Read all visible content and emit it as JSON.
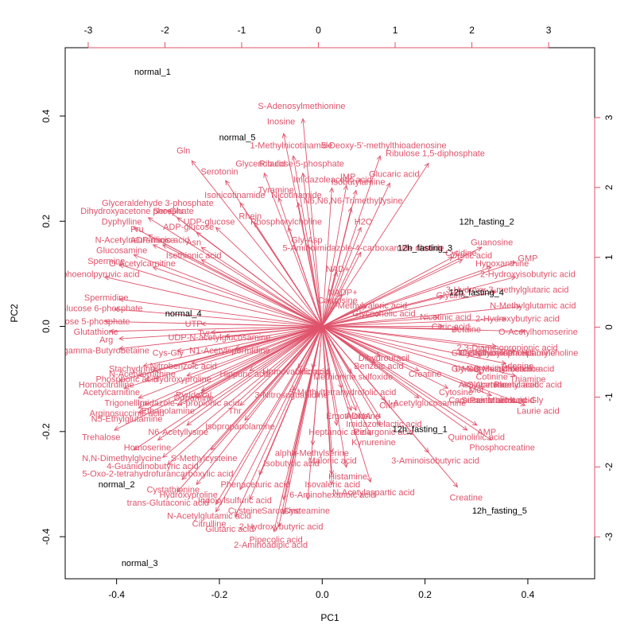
{
  "chart_data": {
    "type": "scatter",
    "subtype": "biplot",
    "title": "",
    "xlabel": "PC1",
    "ylabel": "PC2",
    "xlim": [
      -0.5,
      0.53
    ],
    "ylim": [
      -0.48,
      0.53
    ],
    "xticks": [
      -0.4,
      -0.2,
      0.0,
      0.2,
      0.4
    ],
    "yticks": [
      -0.4,
      -0.2,
      0.0,
      0.2,
      0.4
    ],
    "top_axis": {
      "lim": [
        -3.3,
        3.6
      ],
      "ticks": [
        -3,
        -2,
        -1,
        0,
        1,
        2,
        3
      ]
    },
    "right_axis": {
      "lim": [
        -3.6,
        4.0
      ],
      "ticks": [
        -3,
        -2,
        -1,
        0,
        1,
        2,
        3
      ]
    },
    "grid": false,
    "legend": "none",
    "colors": {
      "samples": "#000000",
      "variables": "#DF536B",
      "axes": "#000000"
    },
    "samples": [
      {
        "name": "normal_1",
        "x": -0.33,
        "y": 0.485
      },
      {
        "name": "normal_5",
        "x": -0.165,
        "y": 0.36
      },
      {
        "name": "normal_4",
        "x": -0.27,
        "y": 0.025
      },
      {
        "name": "normal_2",
        "x": -0.4,
        "y": -0.3
      },
      {
        "name": "normal_3",
        "x": -0.355,
        "y": -0.45
      },
      {
        "name": "12h_fasting_2",
        "x": 0.32,
        "y": 0.2
      },
      {
        "name": "12h_fasting_3",
        "x": 0.2,
        "y": 0.15
      },
      {
        "name": "12h_fasting_4",
        "x": 0.3,
        "y": 0.065
      },
      {
        "name": "12h_fasting_1",
        "x": 0.19,
        "y": -0.195
      },
      {
        "name": "12h_fasting_5",
        "x": 0.345,
        "y": -0.35
      }
    ],
    "variables": [
      {
        "name": "S-Adenosylmethionine",
        "x": -0.04,
        "y": 0.42
      },
      {
        "name": "Inosine",
        "x": -0.08,
        "y": 0.39
      },
      {
        "name": "1-Methylnicotinamide",
        "x": -0.06,
        "y": 0.345
      },
      {
        "name": "5-Deoxy-5'-methylthioadenosine",
        "x": 0.12,
        "y": 0.345
      },
      {
        "name": "Ribulose 1,5-diphosphate",
        "x": 0.22,
        "y": 0.33
      },
      {
        "name": "Gln",
        "x": -0.27,
        "y": 0.335
      },
      {
        "name": "Glyceric acid",
        "x": -0.12,
        "y": 0.31
      },
      {
        "name": "Ribulose 5-phosphate",
        "x": -0.04,
        "y": 0.31
      },
      {
        "name": "Serotonin",
        "x": -0.2,
        "y": 0.295
      },
      {
        "name": "Imidazoleacetic acid",
        "x": 0.02,
        "y": 0.28
      },
      {
        "name": "IMP",
        "x": 0.05,
        "y": 0.285
      },
      {
        "name": "Glucaric acid",
        "x": 0.14,
        "y": 0.29
      },
      {
        "name": "Isobutylamine",
        "x": 0.07,
        "y": 0.275
      },
      {
        "name": "Tyramine",
        "x": -0.09,
        "y": 0.26
      },
      {
        "name": "Isonicotinamide",
        "x": -0.17,
        "y": 0.25
      },
      {
        "name": "Nicotinamide",
        "x": -0.05,
        "y": 0.25
      },
      {
        "name": "N6,N6,N6-Trimethyllysine",
        "x": 0.06,
        "y": 0.24
      },
      {
        "name": "Glyceraldehyde 3-phosphate",
        "x": -0.32,
        "y": 0.235
      },
      {
        "name": "Dihydroxyacetone phosphate",
        "x": -0.36,
        "y": 0.22
      },
      {
        "name": "Ser-Glu",
        "x": -0.3,
        "y": 0.22
      },
      {
        "name": "Dyphylline",
        "x": -0.39,
        "y": 0.2
      },
      {
        "name": "UDP-glucose",
        "x": -0.22,
        "y": 0.2
      },
      {
        "name": "Phosphorylcholine",
        "x": -0.07,
        "y": 0.2
      },
      {
        "name": "H2O",
        "x": 0.08,
        "y": 0.2
      },
      {
        "name": "Fru",
        "x": -0.36,
        "y": 0.185
      },
      {
        "name": "ADP-glucose",
        "x": -0.26,
        "y": 0.19
      },
      {
        "name": "Rhein",
        "x": -0.14,
        "y": 0.21
      },
      {
        "name": "N-Acetylneuraminic acid",
        "x": -0.35,
        "y": 0.165
      },
      {
        "name": "ADP-ribose",
        "x": -0.33,
        "y": 0.165
      },
      {
        "name": "Asn",
        "x": -0.25,
        "y": 0.16
      },
      {
        "name": "Gly-Asp",
        "x": -0.03,
        "y": 0.165
      },
      {
        "name": "Glucosamine",
        "x": -0.39,
        "y": 0.145
      },
      {
        "name": "5-Aminoimidazole-4-carboxamide ribotide",
        "x": 0.08,
        "y": 0.15
      },
      {
        "name": "Spermine",
        "x": -0.42,
        "y": 0.125
      },
      {
        "name": "Isethionic acid",
        "x": -0.25,
        "y": 0.135
      },
      {
        "name": "O-Acetylcarnitine",
        "x": -0.35,
        "y": 0.12
      },
      {
        "name": "Guanosine",
        "x": 0.33,
        "y": 0.16
      },
      {
        "name": "Cytidine",
        "x": 0.27,
        "y": 0.14
      },
      {
        "name": "Orotic acid",
        "x": 0.29,
        "y": 0.135
      },
      {
        "name": "Hypoxanthine",
        "x": 0.35,
        "y": 0.12
      },
      {
        "name": "2-Hydroxyisobutyric acid",
        "x": 0.4,
        "y": 0.1
      },
      {
        "name": "NAD+",
        "x": 0.03,
        "y": 0.11
      },
      {
        "name": "Phosphoenolpyruvic acid",
        "x": -0.45,
        "y": 0.1
      },
      {
        "name": "GMP",
        "x": 0.4,
        "y": 0.13
      },
      {
        "name": "NADP+",
        "x": 0.04,
        "y": 0.065
      },
      {
        "name": "Carnosine",
        "x": 0.03,
        "y": 0.05
      },
      {
        "name": "3-Hydroxy-3-methylglutaric acid",
        "x": 0.36,
        "y": 0.07
      },
      {
        "name": "Glycine",
        "x": 0.25,
        "y": 0.06
      },
      {
        "name": "N-Methylglutamic acid",
        "x": 0.41,
        "y": 0.04
      },
      {
        "name": "2-Methylvaleric acid",
        "x": 0.09,
        "y": 0.04
      },
      {
        "name": "Glycocholic acid",
        "x": 0.12,
        "y": 0.025
      },
      {
        "name": "Spermidine",
        "x": -0.42,
        "y": 0.055
      },
      {
        "name": "Glucose 6-phosphate",
        "x": -0.43,
        "y": 0.035
      },
      {
        "name": "Nicotinic acid",
        "x": 0.24,
        "y": 0.018
      },
      {
        "name": "2-Hydroxybutyric acid",
        "x": 0.38,
        "y": 0.015
      },
      {
        "name": "Ribose 5-phosphate",
        "x": -0.45,
        "y": 0.01
      },
      {
        "name": "UTP",
        "x": -0.25,
        "y": 0.005
      },
      {
        "name": "Glutathione",
        "x": -0.44,
        "y": -0.01
      },
      {
        "name": "O-Acetylhomoserine",
        "x": 0.42,
        "y": -0.01
      },
      {
        "name": "Arg",
        "x": -0.42,
        "y": -0.025
      },
      {
        "name": "Tyr",
        "x": -0.23,
        "y": -0.012
      },
      {
        "name": "UDP-N-acetylglucosamine",
        "x": -0.2,
        "y": -0.02
      },
      {
        "name": "Citric acid",
        "x": 0.25,
        "y": 0.0
      },
      {
        "name": "Betaine",
        "x": 0.28,
        "y": -0.005
      },
      {
        "name": "2,3-Diaminopropionic acid",
        "x": 0.36,
        "y": -0.04
      },
      {
        "name": "gamma-Butyrobetaine",
        "x": -0.42,
        "y": -0.045
      },
      {
        "name": "Cys-Gly",
        "x": -0.3,
        "y": -0.05
      },
      {
        "name": "N1-Acetylspermidine",
        "x": -0.18,
        "y": -0.045
      },
      {
        "name": "Glycerophosphorylcholine",
        "x": 0.4,
        "y": -0.05
      },
      {
        "name": "Stachydrine",
        "x": -0.37,
        "y": -0.08
      },
      {
        "name": "Nitrobenzoic acid",
        "x": -0.27,
        "y": -0.075
      },
      {
        "name": "Hippuric acid",
        "x": -0.15,
        "y": -0.09
      },
      {
        "name": "Adenine",
        "x": 0.38,
        "y": -0.075
      },
      {
        "name": "Benzoic acid",
        "x": 0.11,
        "y": -0.075
      },
      {
        "name": "Dihydrouracil",
        "x": 0.12,
        "y": -0.06
      },
      {
        "name": "Methionine sulfoxide",
        "x": 0.06,
        "y": -0.095
      },
      {
        "name": "Creatine",
        "x": 0.2,
        "y": -0.09
      },
      {
        "name": "Homocitrulline",
        "x": -0.42,
        "y": -0.11
      },
      {
        "name": "Phosphoric acid",
        "x": -0.38,
        "y": -0.1
      },
      {
        "name": "N-Acetylornithine",
        "x": -0.35,
        "y": -0.09
      },
      {
        "name": "Acetylcarnitine",
        "x": -0.41,
        "y": -0.125
      },
      {
        "name": "4-Hydroxyproline",
        "x": -0.28,
        "y": -0.1
      },
      {
        "name": "Homovanillic acid",
        "x": -0.05,
        "y": -0.085
      },
      {
        "name": "Uric acid",
        "x": -0.02,
        "y": -0.085
      },
      {
        "name": "Cotinine",
        "x": 0.33,
        "y": -0.095
      },
      {
        "name": "Thiamine",
        "x": 0.4,
        "y": -0.1
      },
      {
        "name": "Trigonelline",
        "x": -0.38,
        "y": -0.145
      },
      {
        "name": "Arginosuccinic acid",
        "x": -0.38,
        "y": -0.165
      },
      {
        "name": "Pyridoxal",
        "x": -0.25,
        "y": -0.13
      },
      {
        "name": "Dopamine",
        "x": -0.25,
        "y": -0.135
      },
      {
        "name": "Imidazole-4-propionic acid",
        "x": -0.26,
        "y": -0.145
      },
      {
        "name": "5-Methyltetrahydrofolic acid",
        "x": 0.04,
        "y": -0.125
      },
      {
        "name": "3-Nitrosoguanidine",
        "x": -0.06,
        "y": -0.13
      },
      {
        "name": "N5-Ethylglutamine",
        "x": -0.38,
        "y": -0.175
      },
      {
        "name": "Ethanolamine",
        "x": -0.3,
        "y": -0.16
      },
      {
        "name": "Thr",
        "x": -0.17,
        "y": -0.16
      },
      {
        "name": "Cytosine",
        "x": 0.26,
        "y": -0.125
      },
      {
        "name": "Met",
        "x": 0.3,
        "y": -0.12
      },
      {
        "name": "Pantothenic acid",
        "x": 0.35,
        "y": -0.14
      },
      {
        "name": "N-Acetylglucosamine",
        "x": 0.2,
        "y": -0.145
      },
      {
        "name": "CMP",
        "x": 0.13,
        "y": -0.15
      },
      {
        "name": "Ergothioneine",
        "x": 0.06,
        "y": -0.17
      },
      {
        "name": "ADMA",
        "x": 0.07,
        "y": -0.17
      },
      {
        "name": "Isopropanolamine",
        "x": -0.16,
        "y": -0.19
      },
      {
        "name": "N6-Acetyllysine",
        "x": -0.28,
        "y": -0.2
      },
      {
        "name": "Heptanoic acid",
        "x": 0.03,
        "y": -0.2
      },
      {
        "name": "Pelargonic acid",
        "x": 0.12,
        "y": -0.2
      },
      {
        "name": "Imidazolelactic acid",
        "x": 0.12,
        "y": -0.185
      },
      {
        "name": "Trehalose",
        "x": -0.43,
        "y": -0.21
      },
      {
        "name": "Homoserine",
        "x": -0.34,
        "y": -0.23
      },
      {
        "name": "Kynurenine",
        "x": 0.1,
        "y": -0.22
      },
      {
        "name": "Quinolinic acid",
        "x": 0.3,
        "y": -0.21
      },
      {
        "name": "AMP",
        "x": 0.32,
        "y": -0.2
      },
      {
        "name": "Phosphocreatine",
        "x": 0.35,
        "y": -0.23
      },
      {
        "name": "N,N-Dimethylglycine",
        "x": -0.39,
        "y": -0.25
      },
      {
        "name": "S-Methylcysteine",
        "x": -0.23,
        "y": -0.25
      },
      {
        "name": "alpha-Methylserine",
        "x": -0.02,
        "y": -0.24
      },
      {
        "name": "4-Guanidinobutyric acid",
        "x": -0.33,
        "y": -0.265
      },
      {
        "name": "Isobutyric acid",
        "x": -0.06,
        "y": -0.26
      },
      {
        "name": "Malonic acid",
        "x": 0.02,
        "y": -0.255
      },
      {
        "name": "3-Aminoisobutyric acid",
        "x": 0.22,
        "y": -0.255
      },
      {
        "name": "5-Oxo-2-tetrahydrofurancarboxylic acid",
        "x": -0.32,
        "y": -0.28
      },
      {
        "name": "Histamine",
        "x": 0.05,
        "y": -0.285
      },
      {
        "name": "Cystathionine",
        "x": -0.29,
        "y": -0.31
      },
      {
        "name": "Hydroxyproline",
        "x": -0.26,
        "y": -0.32
      },
      {
        "name": "Phenaceturic acid",
        "x": -0.13,
        "y": -0.3
      },
      {
        "name": "Isovaleric acid",
        "x": 0.02,
        "y": -0.3
      },
      {
        "name": "N-Acetylaspartic acid",
        "x": 0.1,
        "y": -0.315
      },
      {
        "name": "trans-Glutaconic acid",
        "x": -0.3,
        "y": -0.335
      },
      {
        "name": "Indoxylsulfuric acid",
        "x": -0.17,
        "y": -0.33
      },
      {
        "name": "6-Aminohexanoic acid",
        "x": 0.02,
        "y": -0.32
      },
      {
        "name": "Creatine",
        "x": 0.28,
        "y": -0.325
      },
      {
        "name": "Cysteine",
        "x": -0.15,
        "y": -0.35
      },
      {
        "name": "Sarcosine",
        "x": -0.08,
        "y": -0.35
      },
      {
        "name": "Cysteamine",
        "x": -0.03,
        "y": -0.35
      },
      {
        "name": "N-Acetylglutamic acid",
        "x": -0.22,
        "y": -0.36
      },
      {
        "name": "Citrulline",
        "x": -0.22,
        "y": -0.375
      },
      {
        "name": "2-Hydroxybutyric acid",
        "x": -0.08,
        "y": -0.38
      },
      {
        "name": "Glutaric acid",
        "x": -0.18,
        "y": -0.385
      },
      {
        "name": "Pipecolic acid",
        "x": -0.09,
        "y": -0.405
      },
      {
        "name": "2-Aminoadipic acid",
        "x": -0.1,
        "y": -0.415
      },
      {
        "name": "Laurie acid",
        "x": 0.42,
        "y": -0.16
      }
    ],
    "extra_labels": [
      "Glu-Gly",
      "Cystathionine",
      "Phosphorylethanolamine",
      "His",
      "Gly-Ser",
      "1-Methylhistidine",
      "3-Methylhistidine",
      "Urocanic acid",
      "Asp",
      "Glutamine",
      "Acetoacetic acid",
      "Phenylacetic acid",
      "Carnitine",
      "Succinic acid",
      "Malic acid",
      "Leu-Gly"
    ]
  }
}
